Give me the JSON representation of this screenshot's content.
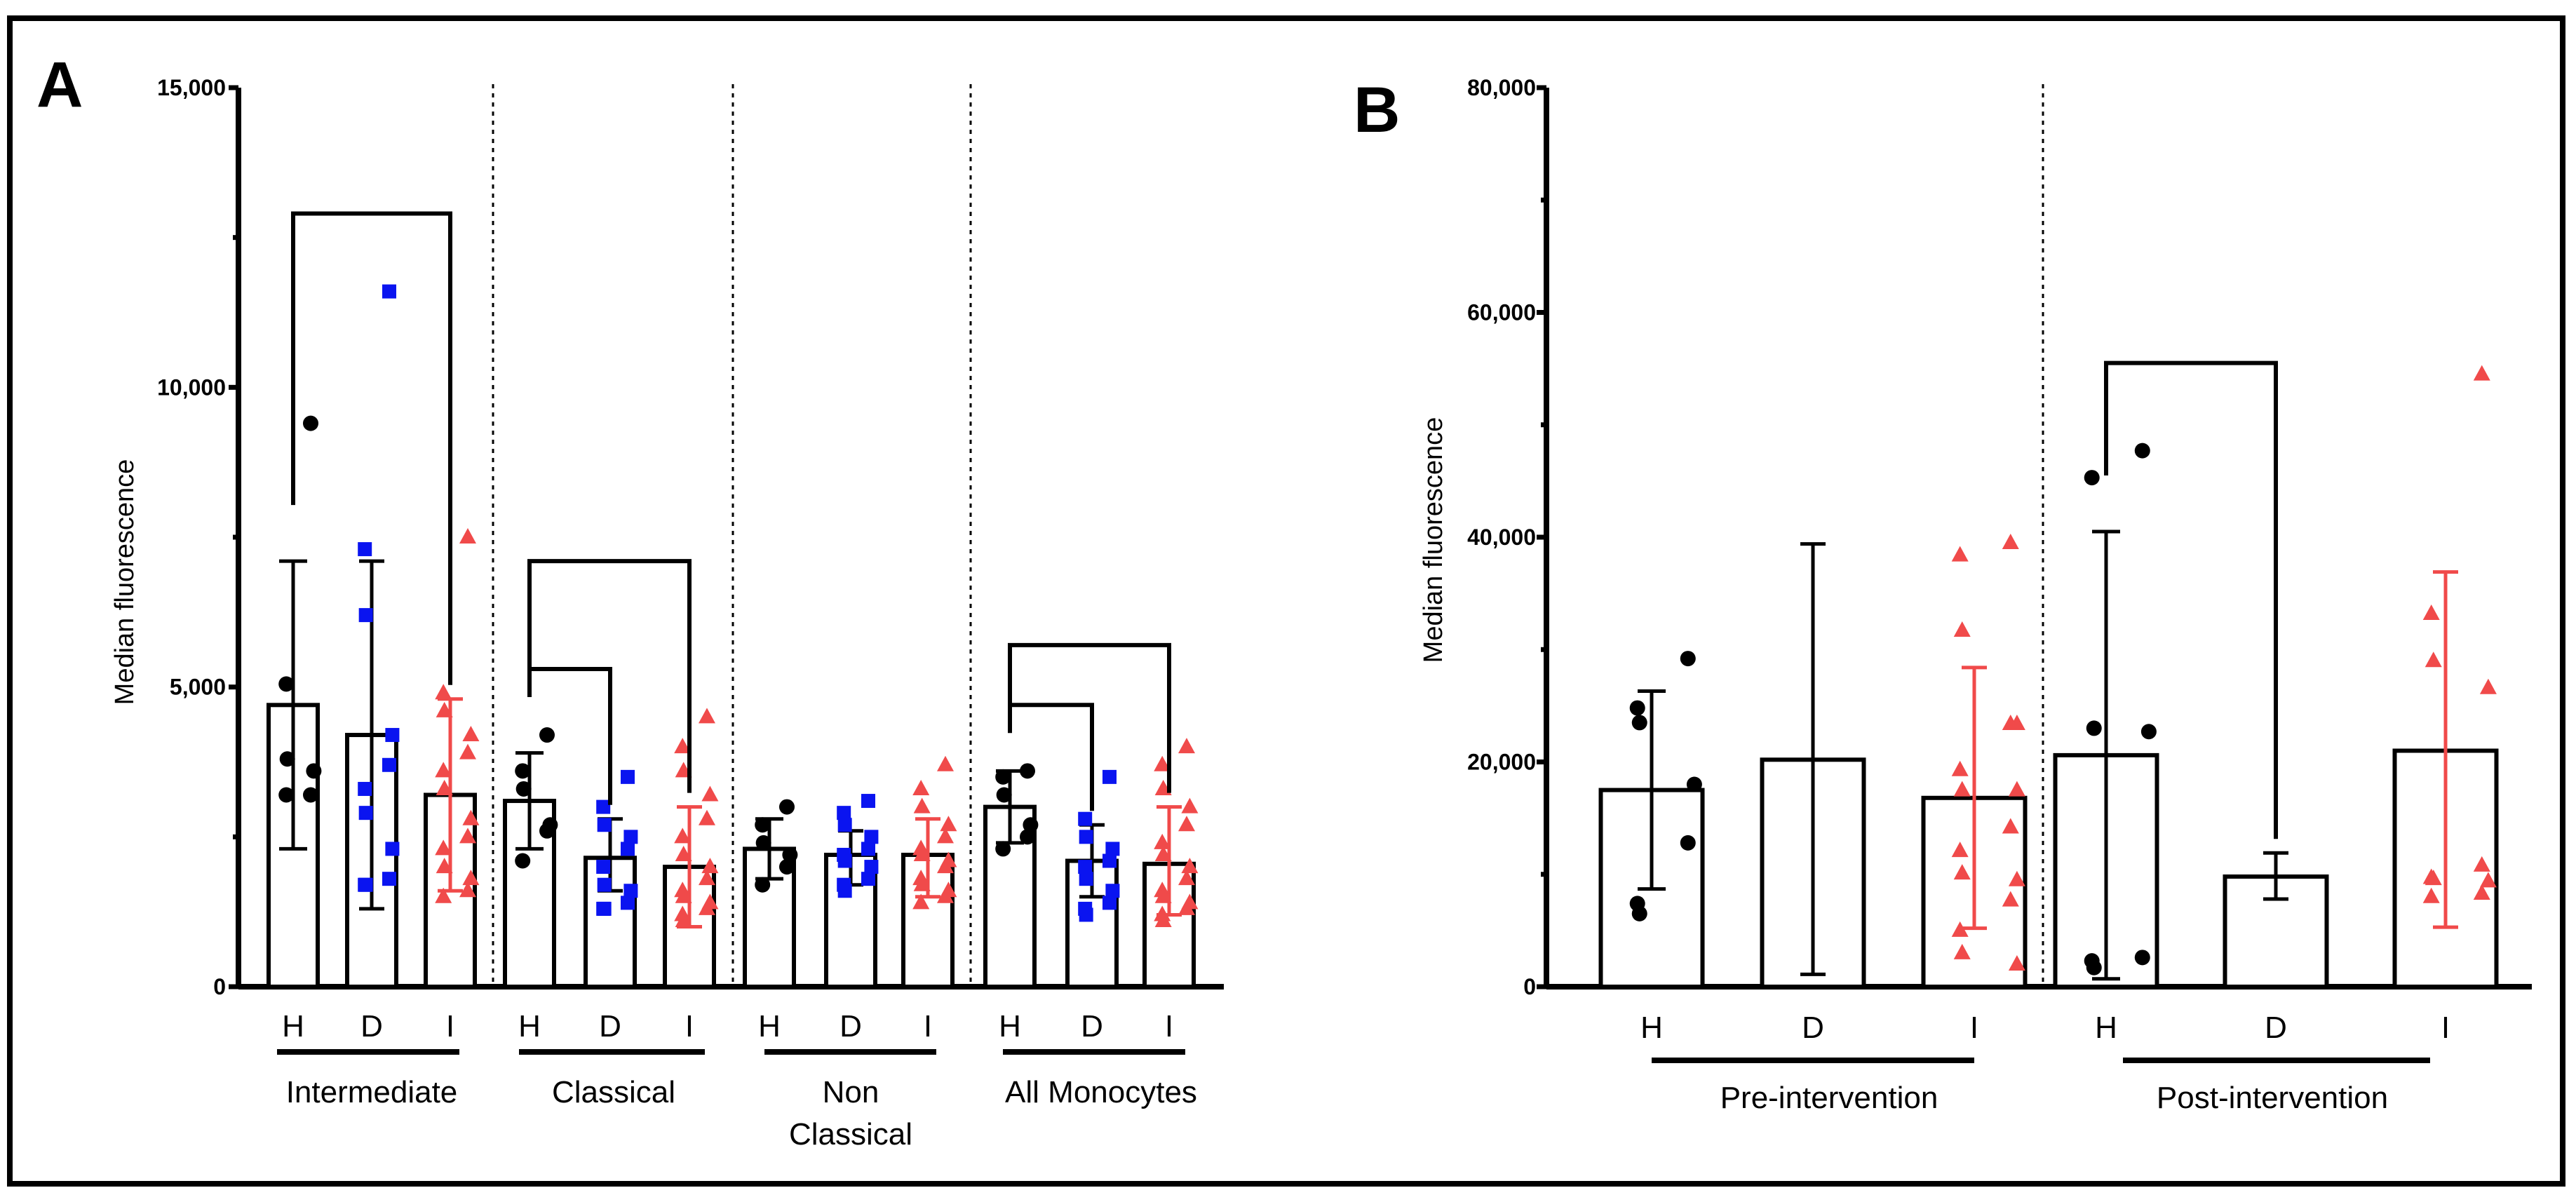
{
  "colors": {
    "H": "#000000",
    "D": "#0a14f0",
    "I": "#f04a4a",
    "frame": "#000000"
  },
  "chart_data": [
    {
      "type": "bar",
      "panel": "A",
      "ylabel": "Median fluorescence",
      "ylim": [
        0,
        15000
      ],
      "yticks": [
        0,
        5000,
        10000,
        15000
      ],
      "ytick_labels": [
        "0",
        "5,000",
        "10,000",
        "15,000"
      ],
      "groups": [
        {
          "name": "Intermediate",
          "label_lines": [
            "Intermediate"
          ],
          "categories": [
            "H",
            "D",
            "I"
          ],
          "means": [
            4700,
            4200,
            3200
          ],
          "error_low": [
            2300,
            1300,
            1600
          ],
          "error_high": [
            7100,
            7100,
            4800
          ],
          "points": [
            [
              9400,
              5050,
              3800,
              3600,
              3200,
              3200
            ],
            [
              11600,
              7300,
              6200,
              4200,
              3700,
              3300,
              2900,
              2300,
              1800,
              1700,
              1700
            ],
            [
              7500,
              4900,
              4600,
              4200,
              3900,
              3600,
              3300,
              2800,
              2500,
              2300,
              2000,
              1800,
              1600,
              1500
            ]
          ],
          "brackets": [
            {
              "from": "H",
              "to": "I",
              "level": 12900
            }
          ]
        },
        {
          "name": "Classical",
          "label_lines": [
            "Classical"
          ],
          "categories": [
            "H",
            "D",
            "I"
          ],
          "means": [
            3100,
            2150,
            2000
          ],
          "error_low": [
            2300,
            1600,
            1000
          ],
          "error_high": [
            3900,
            2800,
            3000
          ],
          "points": [
            [
              4200,
              3600,
              3300,
              2700,
              2600,
              2100
            ],
            [
              3500,
              3000,
              2700,
              2500,
              2300,
              2000,
              1700,
              1600,
              1400,
              1300,
              1300
            ],
            [
              4500,
              4000,
              3600,
              3200,
              2800,
              2500,
              2200,
              2000,
              1800,
              1600,
              1500,
              1400,
              1300,
              1200,
              1100
            ]
          ],
          "brackets": [
            {
              "from": "H",
              "to": "I",
              "level": 7100
            },
            {
              "from": "H",
              "to": "D",
              "level": 5300
            }
          ]
        },
        {
          "name": "Non Classical",
          "label_lines": [
            "Non",
            "Classical"
          ],
          "categories": [
            "H",
            "D",
            "I"
          ],
          "means": [
            2300,
            2200,
            2200
          ],
          "error_low": [
            1800,
            1700,
            1500
          ],
          "error_high": [
            2800,
            2600,
            2800
          ],
          "points": [
            [
              3000,
              2700,
              2400,
              2200,
              2000,
              1700
            ],
            [
              3100,
              2900,
              2700,
              2500,
              2300,
              2200,
              2100,
              2000,
              1800,
              1700,
              1600
            ],
            [
              3700,
              3300,
              3000,
              2700,
              2500,
              2300,
              2200,
              2100,
              2000,
              1800,
              1700,
              1600,
              1500,
              1400
            ]
          ],
          "brackets": []
        },
        {
          "name": "All Monocytes",
          "label_lines": [
            "All Monocytes"
          ],
          "categories": [
            "H",
            "D",
            "I"
          ],
          "means": [
            3000,
            2100,
            2050
          ],
          "error_low": [
            2400,
            1500,
            1200
          ],
          "error_high": [
            3600,
            2700,
            3000
          ],
          "points": [
            [
              3600,
              3500,
              3200,
              2700,
              2500,
              2300
            ],
            [
              3500,
              2800,
              2500,
              2300,
              2100,
              2000,
              1800,
              1600,
              1400,
              1300,
              1200
            ],
            [
              4000,
              3700,
              3300,
              3000,
              2700,
              2400,
              2200,
              2000,
              1800,
              1600,
              1500,
              1400,
              1300,
              1200,
              1100
            ]
          ],
          "brackets": [
            {
              "from": "H",
              "to": "I",
              "level": 5700
            },
            {
              "from": "H",
              "to": "D",
              "level": 4700
            }
          ]
        }
      ]
    },
    {
      "type": "bar",
      "panel": "B",
      "ylabel": "Median fluorescence",
      "ylim": [
        0,
        80000
      ],
      "yticks": [
        0,
        20000,
        40000,
        60000,
        80000
      ],
      "ytick_labels": [
        "0",
        "20,000",
        "40,000",
        "60,000",
        "80,000"
      ],
      "groups": [
        {
          "name": "Pre-intervention",
          "label_lines": [
            "Pre-intervention"
          ],
          "categories": [
            "H",
            "D",
            "I"
          ],
          "means": [
            17500,
            20200,
            16800
          ],
          "error_low": [
            8700,
            1100,
            5200
          ],
          "error_high": [
            26300,
            39400,
            28400
          ],
          "points": [
            [
              29200,
              24800,
              23500,
              18000,
              12800,
              7400,
              6500
            ],
            [],
            [
              39500,
              38400,
              31700,
              23400,
              23400,
              19300,
              17500,
              17500,
              14200,
              12100,
              10100,
              9500,
              7700,
              5000,
              3000,
              2000
            ]
          ],
          "brackets": []
        },
        {
          "name": "Post-intervention",
          "label_lines": [
            "Post-intervention"
          ],
          "categories": [
            "H",
            "D",
            "I"
          ],
          "means": [
            20600,
            9800,
            21000
          ],
          "error_low": [
            700,
            7800,
            5300
          ],
          "error_high": [
            40500,
            11900,
            36900
          ],
          "points": [
            [
              47700,
              45300,
              23000,
              22700,
              2600,
              2300,
              1700
            ],
            [],
            [
              54500,
              33200,
              29000,
              26600,
              10800,
              9700,
              9600,
              9400,
              8300,
              8000
            ]
          ],
          "brackets": [
            {
              "from": "H",
              "to": "D",
              "level": 55500
            }
          ]
        }
      ]
    }
  ]
}
